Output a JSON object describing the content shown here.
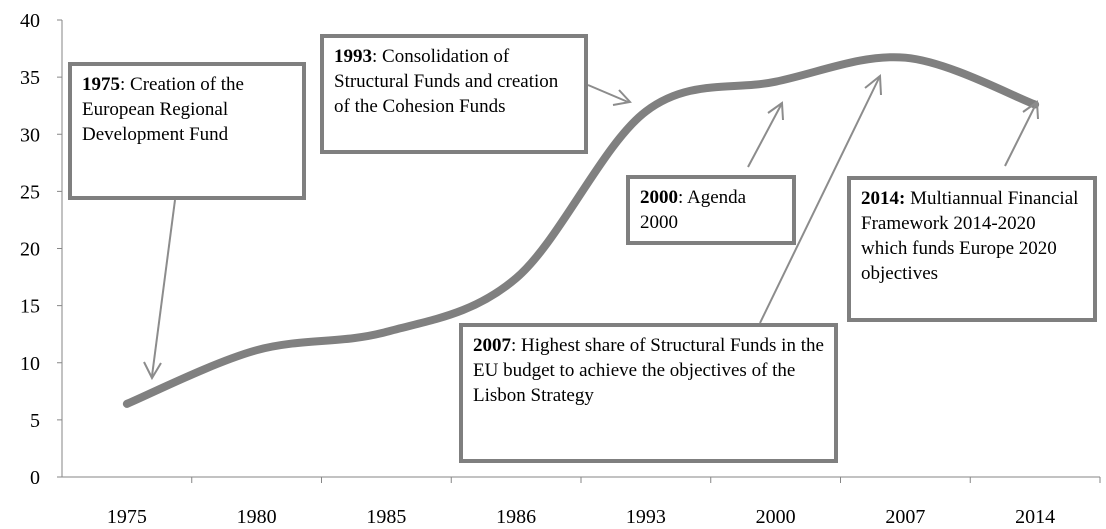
{
  "chart_data": {
    "type": "line",
    "categories": [
      "1975",
      "1980",
      "1985",
      "1986",
      "1993",
      "2000",
      "2007",
      "2014"
    ],
    "series": [
      {
        "color": "#808080",
        "values": [
          6.4,
          11.1,
          12.7,
          17.4,
          32,
          34.6,
          36.7,
          32.6
        ]
      }
    ],
    "ylim": [
      0,
      40
    ],
    "yticks": [
      0,
      5,
      10,
      15,
      20,
      25,
      30,
      35,
      40
    ],
    "annotations": [
      {
        "bold": "1975",
        "text": ": Creation of the European Regional Development Fund"
      },
      {
        "bold": "1993",
        "text": ": Consolidation of Structural Funds and creation of the Cohesion Funds"
      },
      {
        "bold": "2000",
        "text": ": Agenda 2000"
      },
      {
        "bold": "2007",
        "text": ": Highest share of Structural Funds in the EU budget to achieve the objectives of the Lisbon Strategy"
      },
      {
        "bold": "2014:",
        "text": " Multiannual Financial Framework 2014-2020 which funds Europe 2020 objectives"
      }
    ]
  }
}
